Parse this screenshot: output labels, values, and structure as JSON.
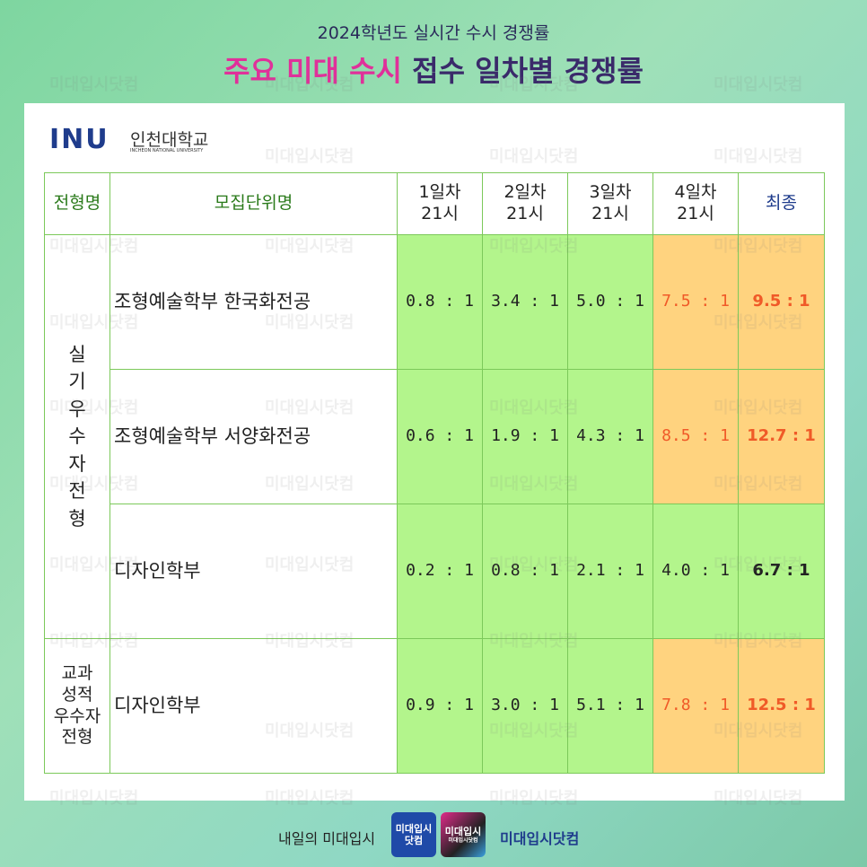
{
  "header": {
    "subtitle": "2024학년도 실시간 수시 경쟁률",
    "title_highlight": "주요 미대 수시",
    "title_rest": "접수 일차별 경쟁률"
  },
  "logo": {
    "mark": "INU",
    "name": "인천대학교",
    "english": "INCHEON NATIONAL UNIVERSITY"
  },
  "watermark": "미대입시닷컴",
  "table": {
    "columns": [
      [
        "전형명"
      ],
      [
        "모집단위명"
      ],
      [
        "1일차",
        "21시"
      ],
      [
        "2일차",
        "21시"
      ],
      [
        "3일차",
        "21시"
      ],
      [
        "4일차",
        "21시"
      ],
      [
        "최종"
      ]
    ],
    "groups": [
      {
        "label": "실기우수자전형",
        "rows": [
          {
            "unit": "조형예술학부 한국화전공",
            "values": [
              "0.8 : 1",
              "3.4 : 1",
              "5.0 : 1",
              "7.5 : 1",
              "9.5 : 1"
            ],
            "highlight": true
          },
          {
            "unit": "조형예술학부 서양화전공",
            "values": [
              "0.6 : 1",
              "1.9 : 1",
              "4.3 : 1",
              "8.5 : 1",
              "12.7 : 1"
            ],
            "highlight": true
          },
          {
            "unit": "디자인학부",
            "values": [
              "0.2 : 1",
              "0.8 : 1",
              "2.1 : 1",
              "4.0 : 1",
              "6.7 : 1"
            ],
            "highlight": false
          }
        ]
      },
      {
        "label": [
          "교과",
          "성적",
          "우수자",
          "전형"
        ],
        "rows": [
          {
            "unit": "디자인학부",
            "values": [
              "0.9 : 1",
              "3.0 : 1",
              "5.1 : 1",
              "7.8 : 1",
              "12.5 : 1"
            ],
            "highlight": true
          }
        ]
      }
    ]
  },
  "footer": {
    "slogan": "내일의 미대입시",
    "logo1": [
      "미대입시",
      "닷컴"
    ],
    "logo2": [
      "미대입시",
      "미대입시닷컴"
    ],
    "brand": "미대입시닷컴"
  }
}
